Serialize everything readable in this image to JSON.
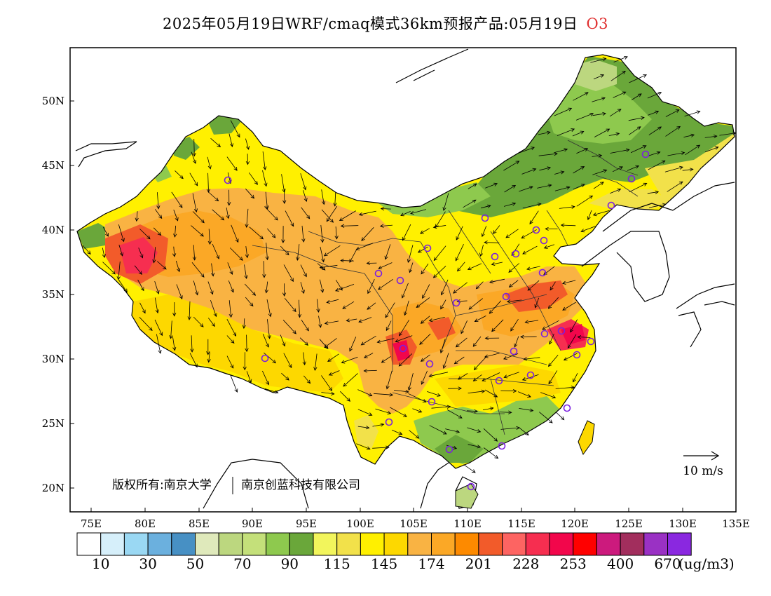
{
  "header": {
    "title": "2025年05月19日WRF/cmaq模式36km预报产品:05月19日",
    "product": "O3"
  },
  "map": {
    "lat_labels": [
      "50N",
      "45N",
      "40N",
      "35N",
      "30N",
      "25N",
      "20N"
    ],
    "lon_labels": [
      "75E",
      "80E",
      "85E",
      "90E",
      "95E",
      "100E",
      "105E",
      "110E",
      "115E",
      "120E",
      "125E",
      "130E",
      "135E"
    ],
    "copyright": "版权所有:南京大学",
    "copyright2": "南京创蓝科技有限公司",
    "wind_scale_label": "10 m/s"
  },
  "colorbar": {
    "colors": [
      "#ffffff",
      "#d6effa",
      "#9ad8f3",
      "#6bb0de",
      "#4790c4",
      "#dfe9bb",
      "#bcd77f",
      "#c4e07a",
      "#8ec94e",
      "#6aa73a",
      "#f2f55c",
      "#f2e14a",
      "#fff000",
      "#fdd800",
      "#f9b343",
      "#fba826",
      "#fd8a00",
      "#f25b2a",
      "#fd6462",
      "#f62e50",
      "#f2064b",
      "#ff0000",
      "#cc1a7d",
      "#a22e5d",
      "#9a31c4",
      "#8a28e0"
    ],
    "labels": [
      "10",
      "30",
      "50",
      "70",
      "90",
      "115",
      "145",
      "174",
      "201",
      "228",
      "253",
      "400",
      "670"
    ],
    "unit": "(ug/m3)"
  }
}
